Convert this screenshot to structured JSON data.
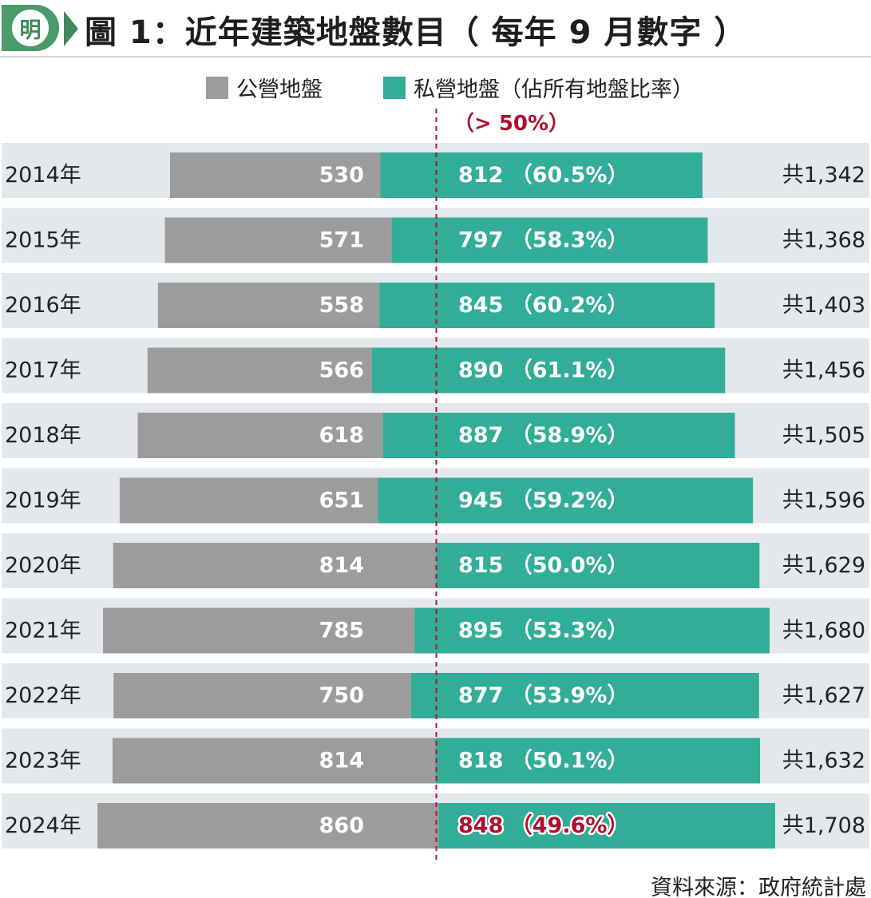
{
  "header": {
    "logo_char": "明",
    "title": "圖 1：近年建築地盤數目（ 每年 9 月數字 ）"
  },
  "legend": {
    "public_label": "公營地盤",
    "private_label": "私營地盤（佔所有地盤比率）",
    "threshold_note": "（> 50%）"
  },
  "colors": {
    "public": "#9d9c9c",
    "private": "#32ad98",
    "row_band": "#e4e8ec",
    "highlight": "#b01030",
    "threshold_line": "#b01030"
  },
  "chart_data": {
    "type": "bar",
    "orientation": "horizontal",
    "stacked": true,
    "categories": [
      "2014年",
      "2015年",
      "2016年",
      "2017年",
      "2018年",
      "2019年",
      "2020年",
      "2021年",
      "2022年",
      "2023年",
      "2024年"
    ],
    "series": [
      {
        "name": "公營地盤",
        "values": [
          530,
          571,
          558,
          566,
          618,
          651,
          814,
          785,
          750,
          814,
          860
        ]
      },
      {
        "name": "私營地盤",
        "values": [
          812,
          797,
          845,
          890,
          887,
          945,
          815,
          895,
          877,
          818,
          848
        ]
      }
    ],
    "private_share_labels": [
      "（60.5%）",
      "（58.3%）",
      "（60.2%）",
      "（61.1%）",
      "（58.9%）",
      "（59.2%）",
      "（50.0%）",
      "（53.3%）",
      "（53.9%）",
      "（50.1%）",
      "（49.6%）"
    ],
    "total_labels": [
      "共1,342",
      "共1,368",
      "共1,403",
      "共1,456",
      "共1,505",
      "共1,596",
      "共1,629",
      "共1,680",
      "共1,627",
      "共1,632",
      "共1,708"
    ],
    "highlight_categories": [
      "2024年"
    ],
    "threshold_share": 0.5,
    "legend_position": "top"
  },
  "footer": {
    "source": "資料來源：政府統計處"
  }
}
